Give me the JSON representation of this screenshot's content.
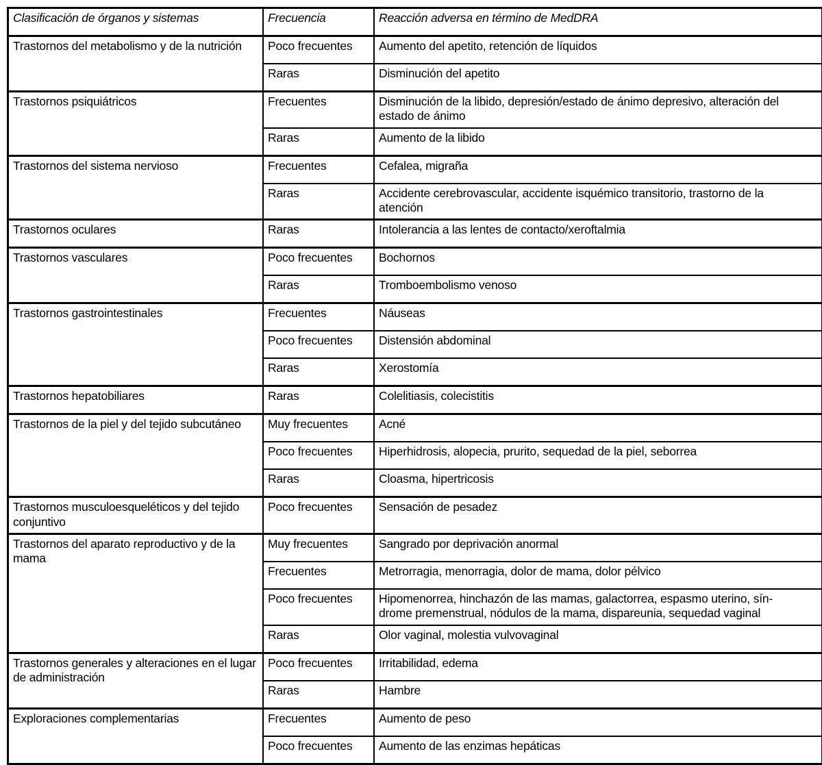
{
  "table": {
    "headers": [
      "Clasificación de órganos y sistemas",
      "Frecuencia",
      "Reacción adversa en término de MedDRA"
    ],
    "groups": [
      {
        "organ": "Trastornos del metabolismo y de la nutrición",
        "rows": [
          {
            "freq": "Poco frecuentes",
            "reaction": "Aumento del apetito, retención de líquidos"
          },
          {
            "freq": "Raras",
            "reaction": "Disminución del apetito"
          }
        ]
      },
      {
        "organ": "Trastornos psiquiátricos",
        "rows": [
          {
            "freq": "Frecuentes",
            "reaction": "Disminución de la libido, depresión/estado de ánimo depresivo, alteración del\nestado de ánimo"
          },
          {
            "freq": "Raras",
            "reaction": "Aumento de la libido"
          }
        ]
      },
      {
        "organ": "Trastornos del sistema nervioso",
        "rows": [
          {
            "freq": "Frecuentes",
            "reaction": "Cefalea, migraña"
          },
          {
            "freq": "Raras",
            "reaction": "Accidente cerebrovascular, accidente isquémico transitorio, trastorno de la\natención"
          }
        ]
      },
      {
        "organ": "Trastornos oculares",
        "rows": [
          {
            "freq": "Raras",
            "reaction": "Intolerancia a las lentes de contacto/xeroftalmia"
          }
        ]
      },
      {
        "organ": "Trastornos vasculares",
        "rows": [
          {
            "freq": "Poco frecuentes",
            "reaction": "Bochornos"
          },
          {
            "freq": "Raras",
            "reaction": "Tromboembolismo venoso"
          }
        ]
      },
      {
        "organ": "Trastornos gastrointestinales",
        "rows": [
          {
            "freq": "Frecuentes",
            "reaction": "Náuseas"
          },
          {
            "freq": "Poco frecuentes",
            "reaction": "Distensión abdominal"
          },
          {
            "freq": "Raras",
            "reaction": "Xerostomía"
          }
        ]
      },
      {
        "organ": "Trastornos hepatobiliares",
        "rows": [
          {
            "freq": "Raras",
            "reaction": "Colelitiasis, colecistitis"
          }
        ]
      },
      {
        "organ": "Trastornos de la piel y del tejido subcutáneo",
        "rows": [
          {
            "freq": "Muy frecuentes",
            "reaction": "Acné"
          },
          {
            "freq": "Poco frecuentes",
            "reaction": "Hiperhidrosis, alopecia, prurito, sequedad de la piel, seborrea"
          },
          {
            "freq": "Raras",
            "reaction": "Cloasma, hipertricosis"
          }
        ]
      },
      {
        "organ": "Trastornos musculoesqueléticos y del tejido conjuntivo",
        "rows": [
          {
            "freq": "Poco frecuentes",
            "reaction": "Sensación de pesadez"
          }
        ]
      },
      {
        "organ": "Trastornos del aparato reproductivo y de la mama",
        "rows": [
          {
            "freq": "Muy frecuentes",
            "reaction": "Sangrado por deprivación anormal"
          },
          {
            "freq": "Frecuentes",
            "reaction": "Metrorragia, menorragia, dolor de mama, dolor pélvico"
          },
          {
            "freq": "Poco frecuentes",
            "reaction": "Hipomenorrea, hinchazón de las mamas, galactorrea, espasmo uterino, sín-\ndrome premenstrual, nódulos de la mama, dispareunia, sequedad vaginal"
          },
          {
            "freq": "Raras",
            "reaction": "Olor vaginal, molestia vulvovaginal"
          }
        ]
      },
      {
        "organ": "Trastornos generales y alteraciones en el lugar de administración",
        "rows": [
          {
            "freq": "Poco frecuentes",
            "reaction": "Irritabilidad, edema"
          },
          {
            "freq": "Raras",
            "reaction": "Hambre"
          }
        ]
      },
      {
        "organ": "Exploraciones complementarias",
        "rows": [
          {
            "freq": "Frecuentes",
            "reaction": "Aumento de peso"
          },
          {
            "freq": "Poco frecuentes",
            "reaction": "Aumento de las enzimas hepáticas"
          }
        ]
      }
    ]
  }
}
